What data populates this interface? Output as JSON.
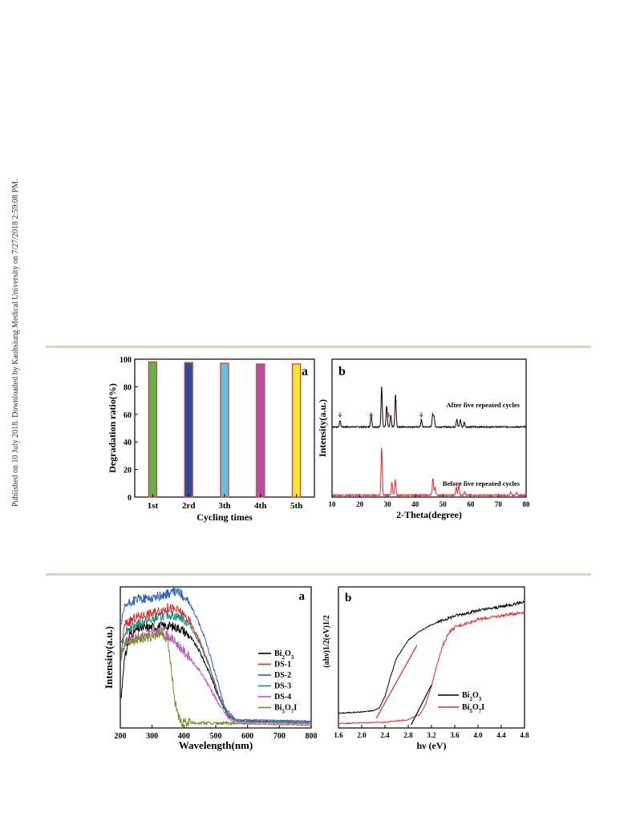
{
  "watermark": "Published on 10 July 2018. Downloaded by Kaohsiung Medical University on 7/27/2018 2:59:08 PM.",
  "chart_data": [
    {
      "panel": "a",
      "type": "bar",
      "categories": [
        "1st",
        "2rd",
        "3th",
        "4th",
        "5th"
      ],
      "values": [
        98,
        97.5,
        97,
        96.5,
        96.5
      ],
      "colors": [
        "#5db54a",
        "#2b4aa0",
        "#5cc3e0",
        "#b24ea6",
        "#f4ea2a"
      ],
      "edge_color": "#e04040",
      "xlabel": "Cycling times",
      "ylabel": "Degradation ratio(%)",
      "ylim": [
        0,
        100
      ],
      "yticks": [
        0,
        20,
        40,
        60,
        80,
        100
      ]
    },
    {
      "panel": "b",
      "type": "line",
      "xlabel": "2-Theta(degree)",
      "ylabel": "Intensity(a.u.)",
      "xlim": [
        10,
        80
      ],
      "xticks": [
        10,
        20,
        30,
        40,
        50,
        60,
        70,
        80
      ],
      "series": [
        {
          "name": "After five repeated cycles",
          "color": "#000000",
          "peaks": [
            [
              12.9,
              8
            ],
            [
              24.1,
              16
            ],
            [
              27.9,
              50
            ],
            [
              29.7,
              26
            ],
            [
              31.2,
              14
            ],
            [
              32.9,
              40
            ],
            [
              42.2,
              9
            ],
            [
              46.3,
              16
            ],
            [
              46.8,
              12
            ],
            [
              55.0,
              10
            ],
            [
              56.3,
              9
            ],
            [
              57.7,
              6
            ]
          ],
          "arrows_x": [
            12.9,
            24.1,
            30.3,
            42.2
          ]
        },
        {
          "name": "Before five repeated cycles",
          "color": "#e8252a",
          "peaks": [
            [
              27.9,
              60
            ],
            [
              31.6,
              16
            ],
            [
              32.8,
              20
            ],
            [
              46.4,
              22
            ],
            [
              47.2,
              10
            ],
            [
              54.8,
              10
            ],
            [
              55.7,
              12
            ],
            [
              57.8,
              5
            ],
            [
              74.5,
              4
            ],
            [
              76.5,
              3
            ]
          ]
        }
      ]
    },
    {
      "panel": "a",
      "type": "line",
      "xlabel": "Wavelength(nm)",
      "ylabel": "Intensity(a.u.)",
      "xlim": [
        200,
        800
      ],
      "xticks": [
        200,
        300,
        400,
        500,
        600,
        700,
        800
      ],
      "series": [
        {
          "name": "Bi2O3",
          "sub": "2",
          "sub2": "3",
          "color": "#000000",
          "points": [
            [
              203,
              0.22
            ],
            [
              210,
              0.45
            ],
            [
              230,
              0.68
            ],
            [
              260,
              0.72
            ],
            [
              300,
              0.73
            ],
            [
              350,
              0.74
            ],
            [
              390,
              0.72
            ],
            [
              420,
              0.66
            ],
            [
              450,
              0.55
            ],
            [
              480,
              0.4
            ],
            [
              510,
              0.22
            ],
            [
              540,
              0.09
            ],
            [
              570,
              0.05
            ],
            [
              800,
              0.04
            ]
          ]
        },
        {
          "name": "DS-1",
          "color": "#e8252a",
          "points": [
            [
              203,
              0.6
            ],
            [
              215,
              0.75
            ],
            [
              250,
              0.8
            ],
            [
              300,
              0.83
            ],
            [
              350,
              0.87
            ],
            [
              390,
              0.84
            ],
            [
              420,
              0.76
            ],
            [
              450,
              0.63
            ],
            [
              480,
              0.45
            ],
            [
              510,
              0.23
            ],
            [
              540,
              0.09
            ],
            [
              570,
              0.05
            ],
            [
              800,
              0.04
            ]
          ]
        },
        {
          "name": "DS-2",
          "color": "#2a5ec4",
          "points": [
            [
              203,
              0.75
            ],
            [
              215,
              0.88
            ],
            [
              250,
              0.93
            ],
            [
              300,
              0.94
            ],
            [
              350,
              0.97
            ],
            [
              380,
              0.99
            ],
            [
              410,
              0.93
            ],
            [
              440,
              0.8
            ],
            [
              470,
              0.62
            ],
            [
              500,
              0.38
            ],
            [
              530,
              0.14
            ],
            [
              560,
              0.06
            ],
            [
              800,
              0.05
            ]
          ]
        },
        {
          "name": "DS-3",
          "color": "#1f8a7a",
          "points": [
            [
              203,
              0.58
            ],
            [
              215,
              0.7
            ],
            [
              250,
              0.75
            ],
            [
              300,
              0.78
            ],
            [
              350,
              0.82
            ],
            [
              390,
              0.8
            ],
            [
              420,
              0.74
            ],
            [
              450,
              0.61
            ],
            [
              480,
              0.44
            ],
            [
              510,
              0.22
            ],
            [
              540,
              0.09
            ],
            [
              570,
              0.05
            ],
            [
              800,
              0.04
            ]
          ]
        },
        {
          "name": "DS-4",
          "color": "#c154c1",
          "points": [
            [
              203,
              0.52
            ],
            [
              215,
              0.62
            ],
            [
              250,
              0.66
            ],
            [
              300,
              0.68
            ],
            [
              330,
              0.7
            ],
            [
              360,
              0.65
            ],
            [
              390,
              0.58
            ],
            [
              420,
              0.5
            ],
            [
              450,
              0.41
            ],
            [
              480,
              0.3
            ],
            [
              510,
              0.17
            ],
            [
              540,
              0.07
            ],
            [
              570,
              0.04
            ],
            [
              800,
              0.03
            ]
          ]
        },
        {
          "name": "Bi5O7I",
          "sub": "5",
          "sub2": "7",
          "color": "#7a8a2a",
          "points": [
            [
              203,
              0.52
            ],
            [
              215,
              0.62
            ],
            [
              250,
              0.64
            ],
            [
              300,
              0.66
            ],
            [
              330,
              0.69
            ],
            [
              350,
              0.62
            ],
            [
              360,
              0.45
            ],
            [
              370,
              0.22
            ],
            [
              380,
              0.09
            ],
            [
              390,
              0.04
            ],
            [
              800,
              0.02
            ]
          ]
        }
      ]
    },
    {
      "panel": "b",
      "type": "line",
      "xlabel": "hν (eV)",
      "ylabel": "(ahν)1/2(eV)1/2",
      "xlim": [
        1.6,
        4.8
      ],
      "xticks": [
        "1.6",
        "2.0",
        "2.4",
        "2.8",
        "3.2",
        "3.6",
        "4.0",
        "4.4",
        "4.8"
      ],
      "series": [
        {
          "name": "Bi2O3",
          "color": "#000000",
          "points": [
            [
              1.6,
              0.09
            ],
            [
              2.0,
              0.1
            ],
            [
              2.2,
              0.11
            ],
            [
              2.3,
              0.13
            ],
            [
              2.4,
              0.22
            ],
            [
              2.5,
              0.38
            ],
            [
              2.6,
              0.52
            ],
            [
              2.8,
              0.66
            ],
            [
              3.0,
              0.73
            ],
            [
              3.2,
              0.78
            ],
            [
              3.6,
              0.85
            ],
            [
              4.0,
              0.89
            ],
            [
              4.4,
              0.92
            ],
            [
              4.8,
              0.96
            ]
          ]
        },
        {
          "name": "Bi5O7I",
          "color": "#e8252a",
          "points": [
            [
              1.6,
              0.01
            ],
            [
              2.4,
              0.02
            ],
            [
              2.8,
              0.04
            ],
            [
              3.0,
              0.08
            ],
            [
              3.1,
              0.16
            ],
            [
              3.2,
              0.3
            ],
            [
              3.3,
              0.48
            ],
            [
              3.4,
              0.62
            ],
            [
              3.5,
              0.72
            ],
            [
              3.6,
              0.76
            ],
            [
              4.0,
              0.82
            ],
            [
              4.4,
              0.85
            ],
            [
              4.8,
              0.88
            ]
          ]
        }
      ],
      "tangents": [
        {
          "color": "#e8252a",
          "from": [
            2.25,
            0.05
          ],
          "to": [
            2.95,
            0.62
          ]
        },
        {
          "color": "#000000",
          "from": [
            2.85,
            0.0
          ],
          "to": [
            3.2,
            0.31
          ]
        }
      ]
    }
  ]
}
